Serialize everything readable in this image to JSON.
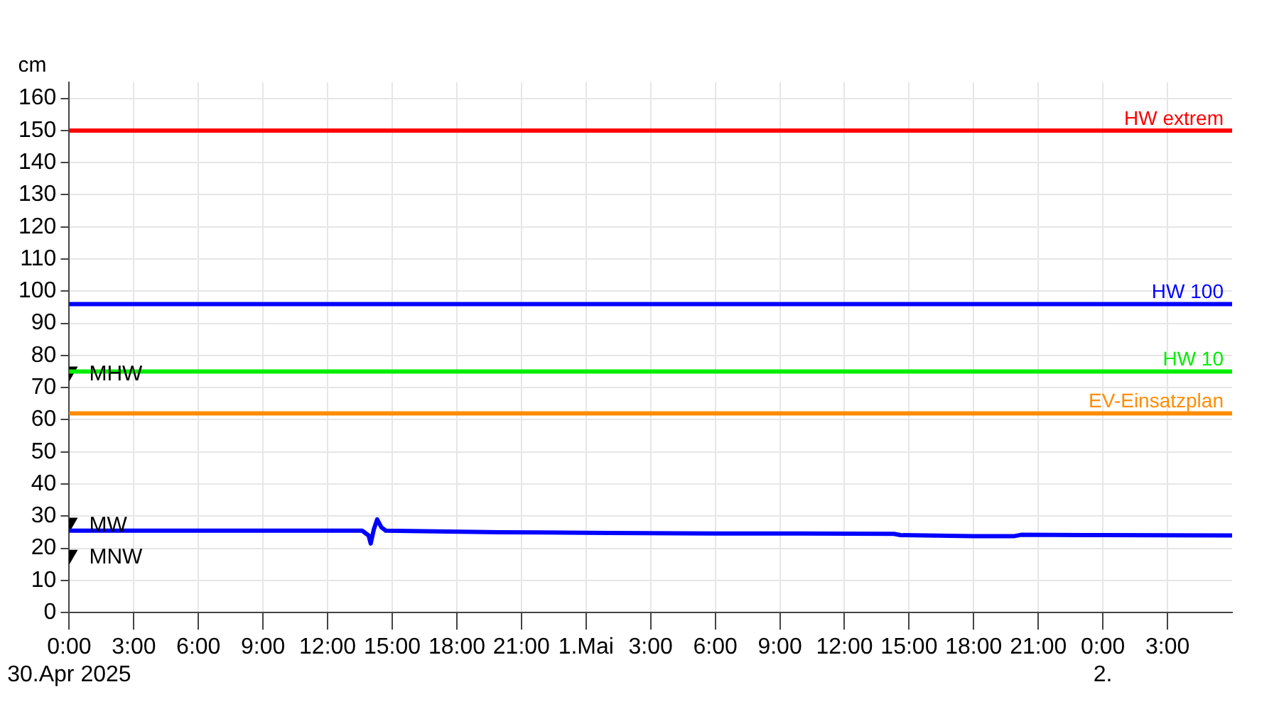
{
  "chart_data": {
    "type": "line",
    "ylabel": "cm",
    "xlim": [
      "2025-04-30T00:00",
      "2025-05-02T06:00"
    ],
    "ylim": [
      0,
      165
    ],
    "yticks": [
      0,
      10,
      20,
      30,
      40,
      50,
      60,
      70,
      80,
      90,
      100,
      110,
      120,
      130,
      140,
      150,
      160
    ],
    "xticks": [
      {
        "value": "2025-04-30T00:00",
        "label": "0:00\n30.Apr 2025"
      },
      {
        "value": "2025-04-30T03:00",
        "label": "3:00"
      },
      {
        "value": "2025-04-30T06:00",
        "label": "6:00"
      },
      {
        "value": "2025-04-30T09:00",
        "label": "9:00"
      },
      {
        "value": "2025-04-30T12:00",
        "label": "12:00"
      },
      {
        "value": "2025-04-30T15:00",
        "label": "15:00"
      },
      {
        "value": "2025-04-30T18:00",
        "label": "18:00"
      },
      {
        "value": "2025-04-30T21:00",
        "label": "21:00"
      },
      {
        "value": "2025-05-01T00:00",
        "label": "1.Mai"
      },
      {
        "value": "2025-05-01T03:00",
        "label": "3:00"
      },
      {
        "value": "2025-05-01T06:00",
        "label": "6:00"
      },
      {
        "value": "2025-05-01T09:00",
        "label": "9:00"
      },
      {
        "value": "2025-05-01T12:00",
        "label": "12:00"
      },
      {
        "value": "2025-05-01T15:00",
        "label": "15:00"
      },
      {
        "value": "2025-05-01T18:00",
        "label": "18:00"
      },
      {
        "value": "2025-05-01T21:00",
        "label": "21:00"
      },
      {
        "value": "2025-05-02T00:00",
        "label": "0:00\n2."
      },
      {
        "value": "2025-05-02T03:00",
        "label": "3:00"
      }
    ],
    "grid": true,
    "legend": false,
    "marker": "none",
    "line_style": "solid",
    "series": [
      {
        "color": "#0000ff",
        "x": [
          "2025-04-30T00:00",
          "2025-04-30T06:00",
          "2025-04-30T13:36",
          "2025-04-30T13:54",
          "2025-04-30T14:00",
          "2025-04-30T14:09",
          "2025-04-30T14:18",
          "2025-04-30T14:30",
          "2025-04-30T14:42",
          "2025-04-30T17:00",
          "2025-04-30T20:00",
          "2025-05-01T01:00",
          "2025-05-01T06:00",
          "2025-05-01T10:00",
          "2025-05-01T14:18",
          "2025-05-01T14:36",
          "2025-05-01T18:00",
          "2025-05-01T19:54",
          "2025-05-01T20:12",
          "2025-05-02T00:00",
          "2025-05-02T06:00"
        ],
        "values": [
          25.5,
          25.5,
          25.5,
          24,
          21.5,
          26,
          29,
          26.5,
          25.5,
          25.3,
          25,
          24.8,
          24.6,
          24.6,
          24.5,
          24.1,
          23.8,
          23.8,
          24.2,
          24.1,
          24
        ]
      },
      {
        "type": "scatter",
        "name": "MHW",
        "color": "#000000",
        "marker": "triangle",
        "x": [
          "2025-04-30T00:00"
        ],
        "values": [
          75
        ]
      },
      {
        "type": "scatter",
        "name": "MW",
        "color": "#000000",
        "marker": "triangle",
        "x": [
          "2025-04-30T00:00"
        ],
        "values": [
          28
        ]
      },
      {
        "type": "scatter",
        "name": "MNW",
        "color": "#000000",
        "marker": "triangle",
        "x": [
          "2025-04-30T00:00"
        ],
        "values": [
          18
        ]
      }
    ],
    "ref_lines": [
      {
        "axis": "y",
        "value": 150,
        "label": "HW extrem",
        "color": "#ff0000"
      },
      {
        "axis": "y",
        "value": 96,
        "label": "HW 100",
        "color": "#0000ff"
      },
      {
        "axis": "y",
        "value": 75,
        "label": "HW 10",
        "color": "#00ee00"
      },
      {
        "axis": "y",
        "value": 62,
        "label": "EV-Einsatzplan",
        "color": "#ff8c00"
      }
    ]
  }
}
